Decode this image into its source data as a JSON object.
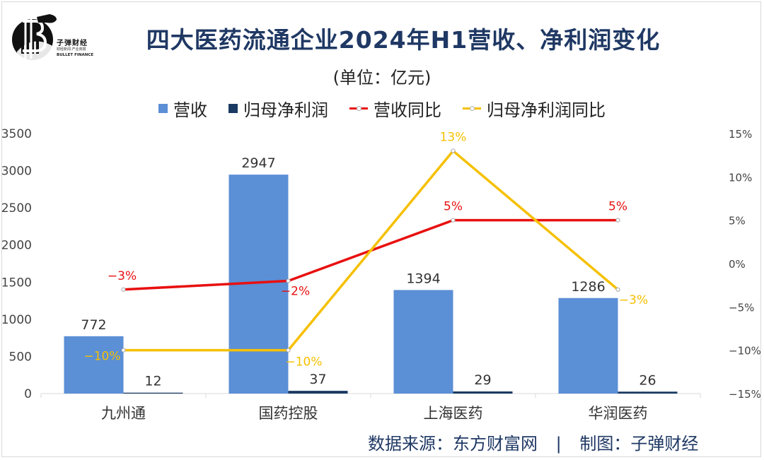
{
  "logo": {
    "name": "子弹财经",
    "sub": "财经新闻·产业商报",
    "en": "BULLET FINANCE"
  },
  "title": "四大医药流通企业2024年H1营收、净利润变化",
  "subtitle": "(单位：亿元)",
  "legend": [
    {
      "label": "营收",
      "kind": "bar",
      "color": "#5b8fd6"
    },
    {
      "label": "归母净利润",
      "kind": "bar",
      "color": "#1a3a63"
    },
    {
      "label": "营收同比",
      "kind": "line",
      "color": "#e81010"
    },
    {
      "label": "归母净利润同比",
      "kind": "line",
      "color": "#f5c000"
    }
  ],
  "chart_data": {
    "type": "bar",
    "categories": [
      "九州通",
      "国药控股",
      "上海医药",
      "华润医药"
    ],
    "series": [
      {
        "name": "营收",
        "type": "bar",
        "axis": "left",
        "color": "#5b8fd6",
        "values": [
          772,
          2947,
          1394,
          1286
        ],
        "labels": [
          "772",
          "2947",
          "1394",
          "1286"
        ]
      },
      {
        "name": "归母净利润",
        "type": "bar",
        "axis": "left",
        "color": "#1a3a63",
        "values": [
          12,
          37,
          29,
          26
        ],
        "labels": [
          "12",
          "37",
          "29",
          "26"
        ]
      },
      {
        "name": "营收同比",
        "type": "line",
        "axis": "right",
        "color": "#e81010",
        "values": [
          -3,
          -2,
          5,
          5
        ],
        "labels": [
          "−3%",
          "−2%",
          "5%",
          "5%"
        ]
      },
      {
        "name": "归母净利润同比",
        "type": "line",
        "axis": "right",
        "color": "#f5c000",
        "values": [
          -10,
          -10,
          13,
          -3
        ],
        "labels": [
          "−10%",
          "−10%",
          "13%",
          "−3%"
        ]
      }
    ],
    "y_left": {
      "min": 0,
      "max": 3500,
      "ticks": [
        0,
        500,
        1000,
        1500,
        2000,
        2500,
        3000,
        3500
      ],
      "tick_labels": [
        "0",
        "500",
        "1000",
        "1500",
        "2000",
        "2500",
        "3000",
        "3500"
      ]
    },
    "y_right": {
      "min": -15,
      "max": 15,
      "ticks": [
        -15,
        -10,
        -5,
        0,
        5,
        10,
        15
      ],
      "tick_labels": [
        "−15%",
        "−10%",
        "−5%",
        "0%",
        "5%",
        "10%",
        "15%"
      ]
    },
    "grid": false
  },
  "source": {
    "text": "数据来源：东方财富网",
    "sep": "|",
    "maker": "制图：子弹财经"
  }
}
